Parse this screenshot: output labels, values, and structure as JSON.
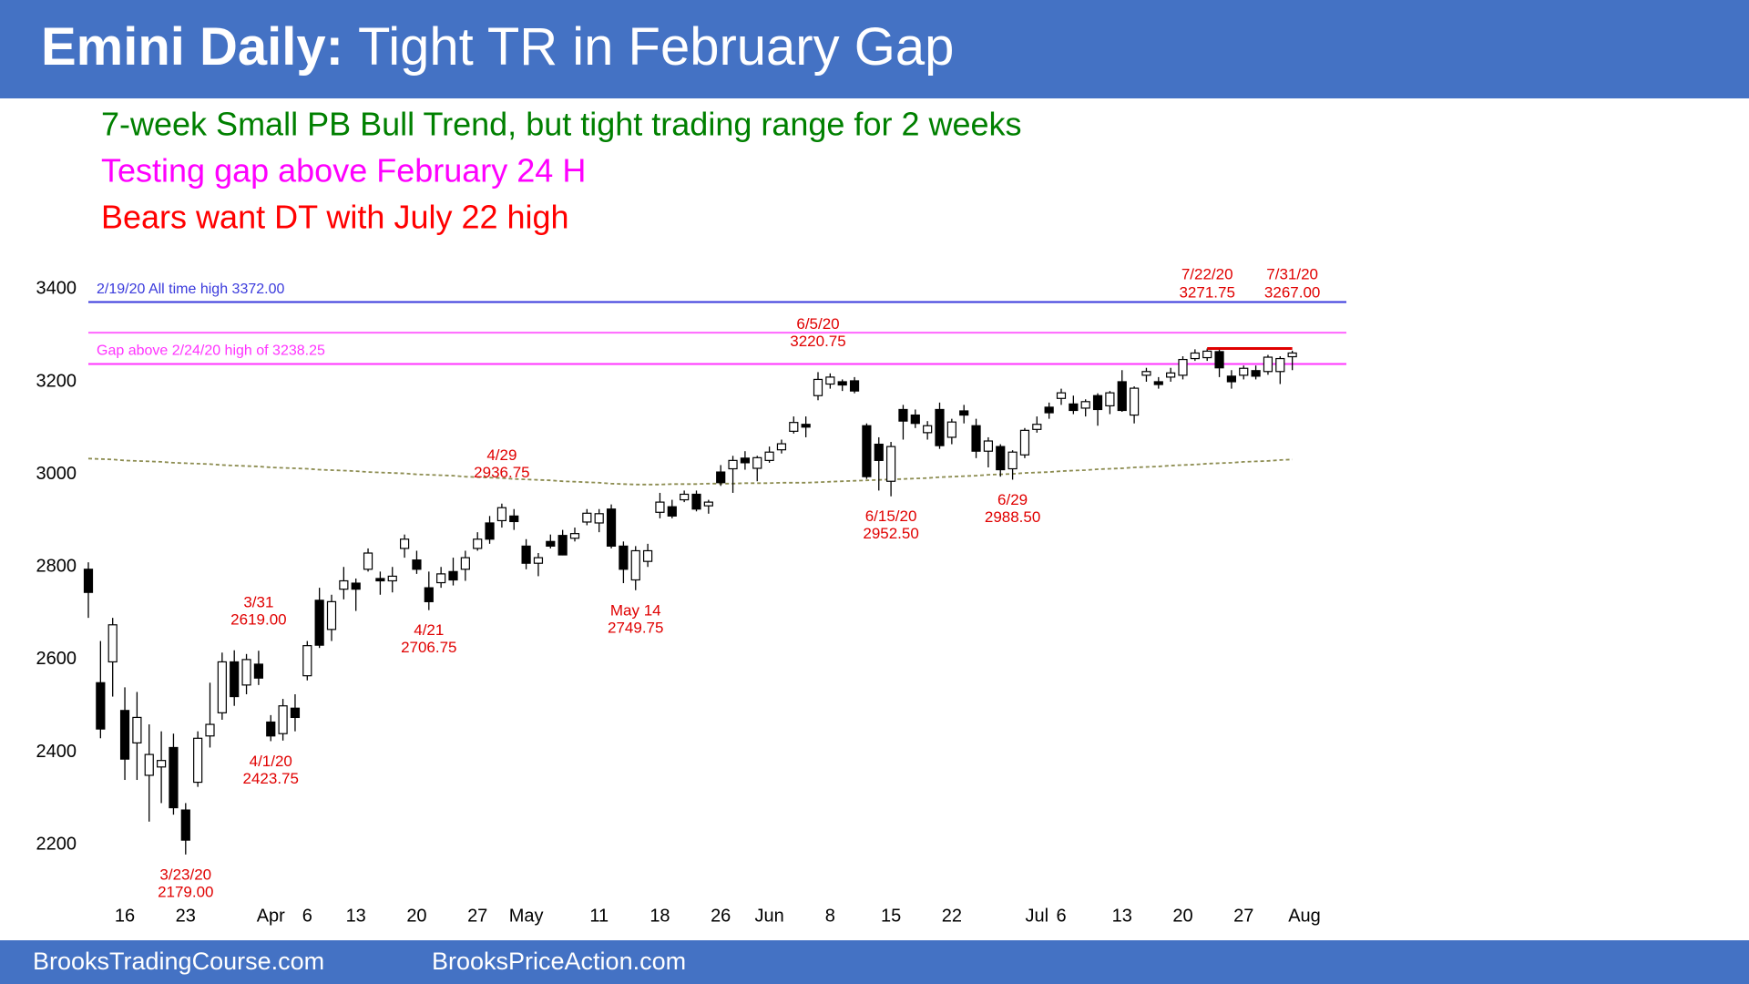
{
  "header": {
    "title_bold": "Emini Daily:",
    "title": "Tight TR in February Gap",
    "bullets": [
      {
        "text": "7-week Small PB Bull Trend, but tight trading range for 2 weeks",
        "color": "#008000"
      },
      {
        "text": "Testing gap above February 24 H",
        "color": "#ff00ff"
      },
      {
        "text": "Bears want DT with July 22 high",
        "color": "#ff0000"
      }
    ]
  },
  "footer": {
    "left": "BrooksTradingCourse.com",
    "right": "BrooksPriceAction.com"
  },
  "chart_data": {
    "type": "candlestick",
    "grid": false,
    "ylim": [
      2100,
      3440
    ],
    "yticks": [
      2200,
      2400,
      2600,
      2800,
      3000,
      3200,
      3400
    ],
    "categories": [
      null,
      null,
      null,
      "16",
      null,
      null,
      null,
      null,
      "23",
      null,
      null,
      null,
      null,
      null,
      null,
      "Apr",
      null,
      null,
      "6",
      null,
      null,
      null,
      "13",
      null,
      null,
      null,
      null,
      "20",
      null,
      null,
      null,
      null,
      "27",
      null,
      null,
      null,
      "May",
      null,
      null,
      null,
      null,
      null,
      "11",
      null,
      null,
      null,
      null,
      "18",
      null,
      null,
      null,
      null,
      "26",
      null,
      null,
      null,
      "Jun",
      null,
      null,
      null,
      null,
      "8",
      null,
      null,
      null,
      null,
      "15",
      null,
      null,
      null,
      null,
      "22",
      null,
      null,
      null,
      null,
      null,
      null,
      "Jul",
      null,
      "6",
      null,
      null,
      null,
      null,
      "13",
      null,
      null,
      null,
      null,
      "20",
      null,
      null,
      null,
      null,
      "27",
      null,
      null,
      null,
      null,
      "Aug"
    ],
    "open": [
      2795,
      2550,
      2595,
      2490,
      2420,
      2350,
      2368,
      2410,
      2275,
      2335,
      2435,
      2485,
      2595,
      2545,
      2590,
      2465,
      2440,
      2495,
      2565,
      2728,
      2665,
      2752,
      2765,
      2795,
      2775,
      2770,
      2840,
      2815,
      2755,
      2766,
      2790,
      2795,
      2840,
      2895,
      2900,
      2910,
      2845,
      2808,
      2855,
      2868,
      2862,
      2897,
      2895,
      2925,
      2845,
      2772,
      2812,
      2918,
      2930,
      2945,
      2957,
      2932,
      3005,
      3012,
      3035,
      3013,
      3030,
      3053,
      3093,
      3108,
      3170,
      3195,
      3200,
      3202,
      3105,
      3065,
      2985,
      3140,
      3128,
      3090,
      3140,
      3080,
      3137,
      3105,
      3050,
      3060,
      3012,
      3042,
      3097,
      3145,
      3164,
      3152,
      3143,
      3170,
      3148,
      3200,
      3128,
      3214,
      3200,
      3210,
      3214,
      3250,
      3252,
      3265,
      3212,
      3214,
      3224,
      3222,
      3222,
      3254,
      null
    ],
    "high": [
      2810,
      2640,
      2690,
      2540,
      2530,
      2460,
      2445,
      2440,
      2290,
      2445,
      2550,
      2615,
      2620,
      2612,
      2619,
      2480,
      2515,
      2525,
      2640,
      2755,
      2740,
      2800,
      2775,
      2840,
      2790,
      2800,
      2870,
      2835,
      2790,
      2800,
      2820,
      2835,
      2875,
      2910,
      2936.75,
      2925,
      2860,
      2830,
      2870,
      2880,
      2885,
      2925,
      2925,
      2935,
      2855,
      2845,
      2850,
      2960,
      2945,
      2965,
      2965,
      2945,
      3020,
      3040,
      3050,
      3040,
      3060,
      3075,
      3125,
      3125,
      3220.75,
      3218,
      3205,
      3210,
      3110,
      3080,
      3070,
      3150,
      3140,
      3115,
      3155,
      3120,
      3150,
      3120,
      3080,
      3065,
      3052,
      3100,
      3125,
      3155,
      3185,
      3170,
      3162,
      3175,
      3180,
      3225,
      3190,
      3230,
      3210,
      3230,
      3255,
      3270,
      3271.75,
      3270,
      3225,
      3235,
      3235,
      3258,
      3255,
      3267,
      null
    ],
    "low": [
      2690,
      2430,
      2520,
      2340,
      2340,
      2250,
      2290,
      2265,
      2179,
      2325,
      2410,
      2470,
      2500,
      2525,
      2545,
      2423.75,
      2425,
      2445,
      2555,
      2625,
      2640,
      2730,
      2705,
      2790,
      2740,
      2745,
      2820,
      2785,
      2706.75,
      2755,
      2760,
      2770,
      2835,
      2850,
      2885,
      2880,
      2795,
      2780,
      2840,
      2825,
      2855,
      2890,
      2875,
      2840,
      2765,
      2749.75,
      2800,
      2905,
      2905,
      2940,
      2920,
      2915,
      2975,
      2960,
      3010,
      2985,
      3025,
      3045,
      3088,
      3080,
      3160,
      3185,
      3180,
      3175,
      2990,
      2965,
      2952.5,
      3075,
      3100,
      3075,
      3055,
      3065,
      3110,
      3035,
      3015,
      2995,
      2988.5,
      3035,
      3090,
      3120,
      3150,
      3130,
      3125,
      3105,
      3130,
      3135,
      3110,
      3200,
      3185,
      3200,
      3205,
      3245,
      3245,
      3210,
      3185,
      3205,
      3205,
      3215,
      3195,
      3225,
      null
    ],
    "close": [
      2745,
      2450,
      2675,
      2385,
      2475,
      2395,
      2382,
      2280,
      2210,
      2430,
      2460,
      2595,
      2520,
      2600,
      2560,
      2435,
      2500,
      2475,
      2630,
      2631,
      2725,
      2770,
      2752,
      2830,
      2770,
      2780,
      2860,
      2795,
      2725,
      2785,
      2772,
      2820,
      2860,
      2860,
      2928,
      2898,
      2808,
      2820,
      2845,
      2826,
      2872,
      2916,
      2915,
      2845,
      2795,
      2835,
      2835,
      2940,
      2910,
      2957,
      2925,
      2940,
      2982,
      3030,
      3025,
      3036,
      3048,
      3066,
      3112,
      3102,
      3205,
      3210,
      3193,
      3180,
      2995,
      3030,
      3060,
      3115,
      3110,
      3105,
      3062,
      3113,
      3128,
      3050,
      3072,
      3010,
      3048,
      3095,
      3108,
      3133,
      3176,
      3138,
      3157,
      3140,
      3176,
      3138,
      3186,
      3222,
      3194,
      3219,
      3248,
      3262,
      3266,
      3230,
      3200,
      3229,
      3212,
      3253,
      3250,
      3262,
      null
    ],
    "up_color": "#ffffff",
    "down_color": "#000000",
    "wick_color": "#000000",
    "ma": {
      "color": "#8c8c50",
      "dashed": true,
      "values": [
        3034,
        3033,
        3032,
        3030,
        3029,
        3028,
        3027,
        3025,
        3024,
        3023,
        3022,
        3020,
        3019,
        3018,
        3017,
        3015,
        3014,
        3013,
        3012,
        3010,
        3009,
        3008,
        3007,
        3005,
        3004,
        3003,
        3002,
        3000,
        2999,
        2998,
        2997,
        2995,
        2994,
        2993,
        2992,
        2990,
        2989,
        2988,
        2987,
        2985,
        2984,
        2983,
        2982,
        2980,
        2979,
        2978,
        2978,
        2978,
        2979,
        2979,
        2979,
        2980,
        2980,
        2980,
        2981,
        2981,
        2981,
        2982,
        2982,
        2982,
        2983,
        2984,
        2985,
        2986,
        2987,
        2988,
        2989,
        2990,
        2991,
        2992,
        2994,
        2995,
        2996,
        2997,
        2999,
        3000,
        3001,
        3003,
        3004,
        3005,
        3007,
        3008,
        3009,
        3011,
        3012,
        3013,
        3015,
        3016,
        3017,
        3019,
        3020,
        3021,
        3023,
        3024,
        3025,
        3027,
        3028,
        3029,
        3031,
        3032,
        null
      ]
    },
    "levels": [
      {
        "label": "2/19/20 All time high 3372.00",
        "value": 3372,
        "color": "#3a3adc"
      },
      {
        "value": 3306,
        "color": "#ff66ff"
      },
      {
        "label": "Gap above 2/24/20 high of 3238.25",
        "value": 3238.25,
        "color": "#ff33ff"
      }
    ],
    "resistance": {
      "value": 3271.75,
      "from_candle": 92,
      "to_candle": 99,
      "color": "#e00000"
    },
    "annotation_color": "#e00000",
    "annotations": [
      {
        "candle": 8,
        "position": "below",
        "lines": [
          "3/23/20",
          "2179.00"
        ]
      },
      {
        "candle": 14,
        "position": "above",
        "lines": [
          "3/31",
          "2619.00"
        ]
      },
      {
        "candle": 15,
        "position": "below",
        "lines": [
          "4/1/20",
          "2423.75"
        ]
      },
      {
        "candle": 28,
        "position": "below",
        "lines": [
          "4/21",
          "2706.75"
        ]
      },
      {
        "candle": 34,
        "position": "above",
        "lines": [
          "4/29",
          "2936.75"
        ]
      },
      {
        "candle": 45,
        "position": "below",
        "lines": [
          "May 14",
          "2749.75"
        ]
      },
      {
        "candle": 60,
        "position": "above",
        "lines": [
          "6/5/20",
          "3220.75"
        ]
      },
      {
        "candle": 66,
        "position": "below",
        "lines": [
          "6/15/20",
          "2952.50"
        ]
      },
      {
        "candle": 76,
        "position": "below",
        "lines": [
          "6/29",
          "2988.50"
        ]
      },
      {
        "candle": 92,
        "position": "top",
        "lines": [
          "7/22/20",
          "3271.75"
        ]
      },
      {
        "candle": 99,
        "position": "top",
        "lines": [
          "7/31/20",
          "3267.00"
        ]
      }
    ]
  }
}
